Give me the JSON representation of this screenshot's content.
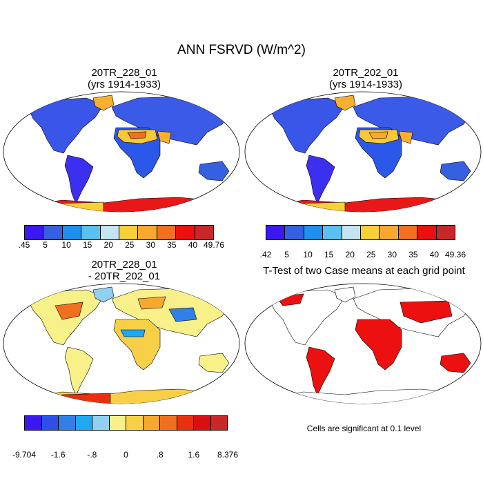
{
  "title": "ANN FSRVD (W/m^2)",
  "panels": {
    "p1": {
      "title_line1": "20TR_228_01",
      "title_line2": "(yrs 1914-1933)"
    },
    "p2": {
      "title_line1": "20TR_202_01",
      "title_line2": "(yrs 1914-1933)"
    },
    "p3": {
      "title_line1": "20TR_228_01",
      "title_line2": "- 20TR_202_01"
    },
    "p4": {
      "title_line1": "T-Test of two Case means at each grid point",
      "note": "Cells are significant at 0.1 level"
    }
  },
  "colorbars": {
    "cb1": {
      "colors": [
        "#3b18f0",
        "#3560e0",
        "#1e90ee",
        "#5cc0ee",
        "#c4e4f2",
        "#f8d038",
        "#f8a830",
        "#f07020",
        "#ec1010",
        "#c82828"
      ],
      "labels": [
        ".45",
        "5",
        "10",
        "15",
        "20",
        "25",
        "30",
        "35",
        "40",
        "49.76"
      ]
    },
    "cb2": {
      "colors": [
        "#3b18f0",
        "#3560e0",
        "#1e90ee",
        "#5cc0ee",
        "#c4e4f2",
        "#f8d038",
        "#f8a830",
        "#f07020",
        "#ec1010",
        "#c82828"
      ],
      "labels": [
        ".42",
        "5",
        "10",
        "15",
        "20",
        "25",
        "30",
        "35",
        "40",
        "49.36"
      ]
    },
    "cb3": {
      "colors": [
        "#3b18f0",
        "#2e50e8",
        "#3080e8",
        "#20a8f0",
        "#90d0f0",
        "#f8f088",
        "#f8d048",
        "#f8a830",
        "#f07020",
        "#e83010",
        "#d81010",
        "#c82828"
      ],
      "labels": [
        "-9.704",
        "-1.6",
        "-.8",
        "0",
        ".8",
        "1.6",
        "8.376"
      ]
    }
  }
}
